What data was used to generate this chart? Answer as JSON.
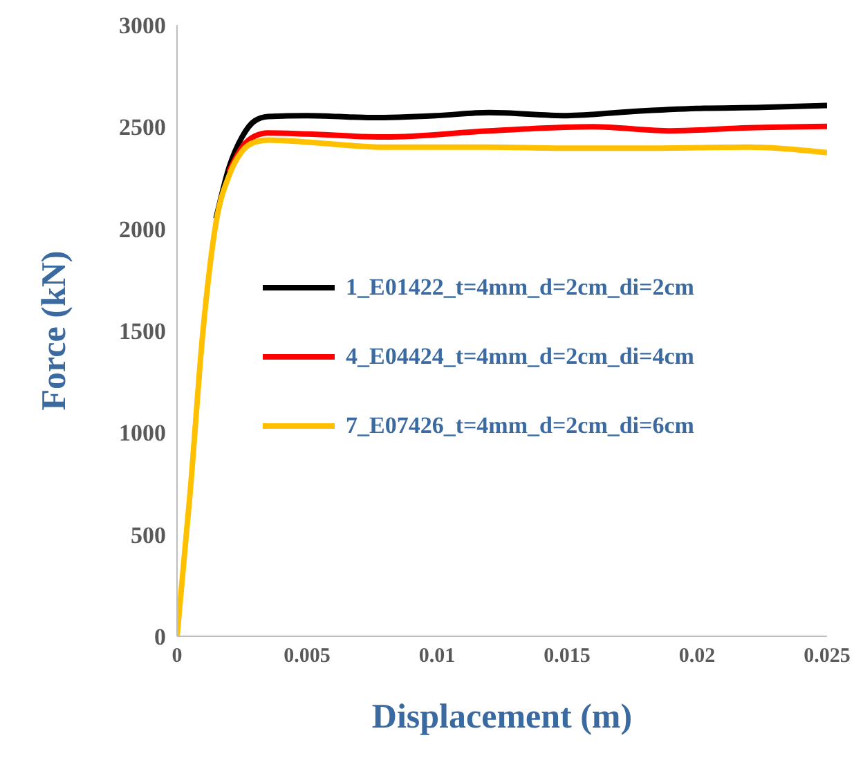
{
  "chart_data": {
    "type": "line",
    "xlabel": "Displacement (m)",
    "ylabel": "Force (kN)",
    "xlim": [
      0,
      0.025
    ],
    "xticks": [
      0,
      0.005,
      0.01,
      0.015,
      0.02,
      0.025
    ],
    "ylim": [
      0,
      3000
    ],
    "yticks": [
      0,
      500,
      1000,
      1500,
      2000,
      2500,
      3000
    ],
    "grid": false,
    "legend": "right",
    "marker": "none",
    "line_style": "solid",
    "series": [
      {
        "name": "1_E01422_t=4mm_d=2cm_di=2cm",
        "color": "#000000",
        "x": [
          0.0015,
          0.002,
          0.0025,
          0.003,
          0.0035,
          0.005,
          0.0075,
          0.01,
          0.012,
          0.015,
          0.0175,
          0.02,
          0.0225,
          0.025
        ],
        "values": [
          2050,
          2300,
          2450,
          2530,
          2550,
          2555,
          2545,
          2555,
          2570,
          2555,
          2575,
          2590,
          2595,
          2605
        ]
      },
      {
        "name": "4_E04424_t=4mm_d=2cm_di=4cm",
        "color": "#ff0000",
        "x": [
          0.002,
          0.0025,
          0.003,
          0.0035,
          0.005,
          0.008,
          0.012,
          0.016,
          0.019,
          0.022,
          0.025
        ],
        "values": [
          2280,
          2400,
          2455,
          2470,
          2465,
          2450,
          2480,
          2500,
          2480,
          2495,
          2502
        ]
      },
      {
        "name": "7_E07426_t=4mm_d=2cm_di=6cm",
        "color": "#ffc000",
        "x": [
          0,
          0.0005,
          0.001,
          0.0015,
          0.002,
          0.0025,
          0.003,
          0.0035,
          0.005,
          0.008,
          0.012,
          0.015,
          0.018,
          0.022,
          0.025
        ],
        "values": [
          0,
          700,
          1500,
          2030,
          2260,
          2380,
          2425,
          2435,
          2425,
          2400,
          2400,
          2395,
          2395,
          2400,
          2373
        ]
      }
    ]
  }
}
